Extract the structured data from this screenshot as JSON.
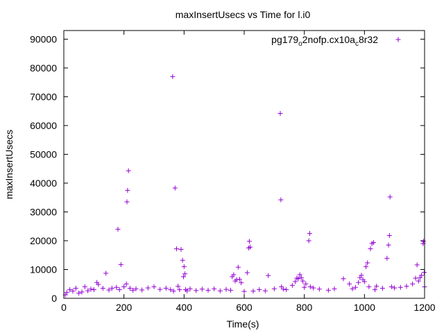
{
  "chart_data": {
    "type": "scatter",
    "title": "maxInsertUsecs vs Time for l.i0",
    "xlabel": "Time(s)",
    "ylabel": "maxInsertUsecs",
    "xlim": [
      0,
      1200
    ],
    "ylim": [
      0,
      93000
    ],
    "xticks": [
      0,
      200,
      400,
      600,
      800,
      1000,
      1200
    ],
    "yticks": [
      0,
      10000,
      20000,
      30000,
      40000,
      50000,
      60000,
      70000,
      80000,
      90000
    ],
    "grid": false,
    "legend_position": "top-right",
    "marker": "+",
    "series": [
      {
        "name_parts": {
          "base": "pg179",
          "sub1": "o",
          "mid1": "2nofp.cx10a",
          "sub2": "c",
          "end": "8r32"
        },
        "color": "#9400d3",
        "x": [
          5,
          10,
          20,
          30,
          40,
          50,
          60,
          70,
          80,
          90,
          100,
          110,
          115,
          130,
          140,
          150,
          160,
          175,
          180,
          185,
          190,
          200,
          208,
          210,
          212,
          215,
          220,
          230,
          240,
          260,
          280,
          300,
          320,
          340,
          355,
          362,
          365,
          370,
          375,
          380,
          385,
          390,
          395,
          398,
          400,
          403,
          405,
          410,
          420,
          440,
          460,
          480,
          500,
          520,
          540,
          555,
          560,
          565,
          570,
          575,
          580,
          585,
          590,
          600,
          610,
          615,
          617,
          620,
          630,
          650,
          670,
          680,
          700,
          720,
          722,
          724,
          730,
          740,
          760,
          770,
          775,
          780,
          785,
          790,
          795,
          800,
          805,
          815,
          818,
          820,
          830,
          850,
          880,
          900,
          930,
          950,
          960,
          970,
          980,
          985,
          990,
          995,
          1000,
          1005,
          1010,
          1015,
          1020,
          1025,
          1030,
          1035,
          1040,
          1060,
          1075,
          1080,
          1083,
          1085,
          1090,
          1100,
          1120,
          1140,
          1160,
          1170,
          1175,
          1180,
          1185,
          1190,
          1195,
          1197,
          1199,
          1200
        ],
        "y": [
          1200,
          2000,
          3000,
          2500,
          3500,
          1800,
          2200,
          4000,
          2600,
          3200,
          3000,
          5500,
          4800,
          3500,
          8700,
          2900,
          3500,
          3800,
          24000,
          3000,
          11700,
          4000,
          5000,
          33500,
          37500,
          44300,
          3500,
          2800,
          3300,
          2900,
          3600,
          4000,
          3100,
          3500,
          3000,
          77000,
          2500,
          38300,
          17200,
          4200,
          3000,
          17000,
          13200,
          7500,
          11000,
          8500,
          3000,
          2600,
          3300,
          2700,
          3200,
          2800,
          3300,
          2600,
          3100,
          2800,
          7500,
          8200,
          6000,
          6500,
          10800,
          6600,
          5400,
          2400,
          8900,
          17500,
          19800,
          17800,
          2500,
          3000,
          2600,
          7900,
          3300,
          64200,
          34200,
          4000,
          3200,
          3000,
          4500,
          5800,
          7000,
          6800,
          8200,
          7200,
          6000,
          3800,
          5000,
          20000,
          22500,
          4000,
          3600,
          3200,
          2800,
          3300,
          6800,
          5000,
          3300,
          3800,
          5500,
          7200,
          8000,
          6500,
          5800,
          11000,
          12300,
          4000,
          17200,
          19000,
          19400,
          3000,
          4200,
          3500,
          13900,
          18500,
          21800,
          35200,
          4000,
          3600,
          3800,
          4200,
          5000,
          7000,
          11600,
          6000,
          7200,
          8000,
          19000,
          19800,
          9000,
          4000
        ]
      }
    ]
  }
}
